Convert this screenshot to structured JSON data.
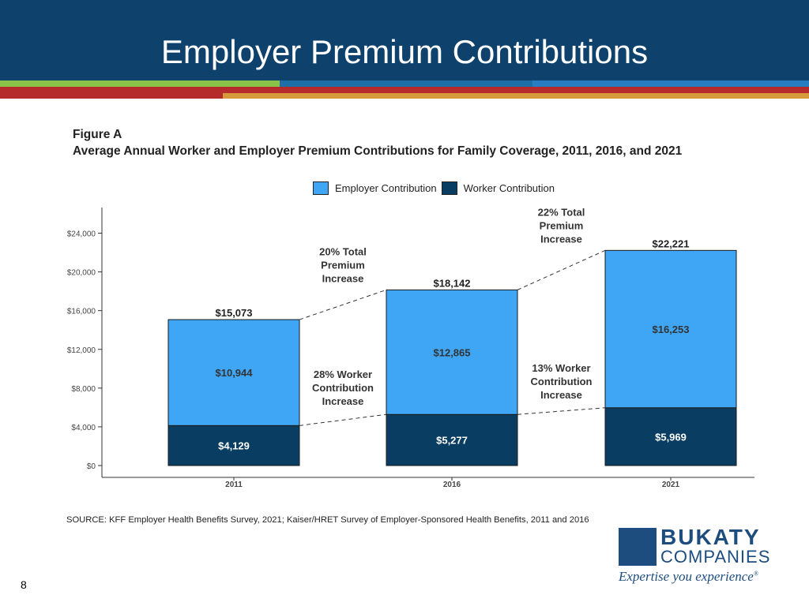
{
  "slide": {
    "title": "Employer Premium Contributions",
    "page_number": "8"
  },
  "colors": {
    "header": "#0e416c",
    "employer": "#3fa6f6",
    "worker": "#0a3d62",
    "stripe_green": "#8bc34a",
    "stripe_blue": "#1e6fa8",
    "stripe_red": "#b52b2b",
    "stripe_orange": "#d69a3a"
  },
  "figure": {
    "label": "Figure A",
    "title": "Average Annual Worker and Employer Premium Contributions for Family Coverage, 2011, 2016, and 2021",
    "source": "SOURCE: KFF Employer Health Benefits Survey, 2021; Kaiser/HRET Survey of Employer-Sponsored Health Benefits, 2011 and 2016"
  },
  "chart_data": {
    "type": "bar",
    "stacked": true,
    "title": "Average Annual Worker and Employer Premium Contributions for Family Coverage, 2011, 2016, and 2021",
    "categories": [
      "2011",
      "2016",
      "2021"
    ],
    "series": [
      {
        "name": "Worker Contribution",
        "values": [
          4129,
          5277,
          5969
        ],
        "labels": [
          "$4,129",
          "$5,277",
          "$5,969"
        ],
        "color": "#0a3d62"
      },
      {
        "name": "Employer Contribution",
        "values": [
          10944,
          12865,
          16253
        ],
        "labels": [
          "$10,944",
          "$12,865",
          "$16,253"
        ],
        "color": "#3fa6f6"
      }
    ],
    "legend_order": [
      "Employer Contribution",
      "Worker Contribution"
    ],
    "totals": [
      15073,
      18142,
      22221
    ],
    "total_labels": [
      "$15,073",
      "$18,142",
      "$22,221"
    ],
    "y_ticks": [
      0,
      4000,
      8000,
      12000,
      16000,
      20000,
      24000
    ],
    "y_tick_labels": [
      "$0",
      "$4,000",
      "$8,000",
      "$12,000",
      "$16,000",
      "$20,000",
      "$24,000"
    ],
    "ylim": [
      0,
      27000
    ],
    "legend_position": "top",
    "grid": false,
    "annotations": [
      {
        "from": 0,
        "to": 1,
        "type": "total",
        "lines": [
          "20% Total",
          "Premium",
          "Increase"
        ]
      },
      {
        "from": 1,
        "to": 2,
        "type": "total",
        "lines": [
          "22% Total",
          "Premium",
          "Increase"
        ]
      },
      {
        "from": 0,
        "to": 1,
        "type": "worker",
        "lines": [
          "28% Worker",
          "Contribution",
          "Increase"
        ]
      },
      {
        "from": 1,
        "to": 2,
        "type": "worker",
        "lines": [
          "13% Worker",
          "Contribution",
          "Increase"
        ]
      }
    ]
  },
  "logo": {
    "brand": "BUKATY",
    "brand_sub": "COMPANIES",
    "tagline": "Expertise you experience",
    "tagline_mark": "®"
  }
}
